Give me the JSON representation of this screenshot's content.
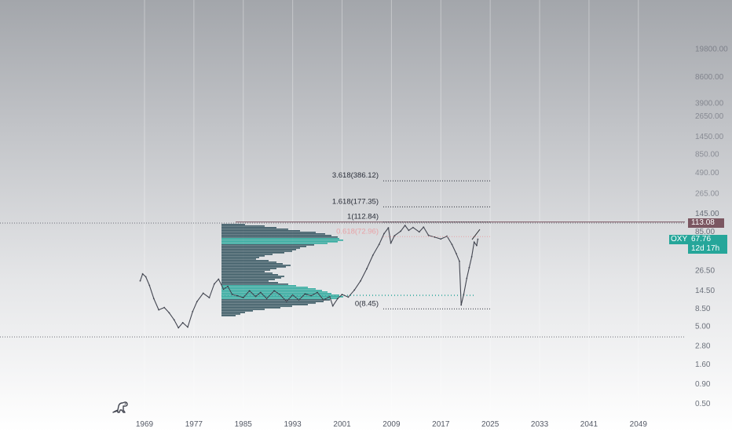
{
  "chart_data": {
    "type": "line",
    "symbol": "OXY",
    "x_ticks": [
      "1969",
      "1977",
      "1985",
      "1993",
      "2001",
      "2009",
      "2017",
      "2025",
      "2033",
      "2041",
      "2049"
    ],
    "y_scale": "log",
    "y_ticks": [
      "19800.00",
      "8600.00",
      "3900.00",
      "2650.00",
      "1450.00",
      "850.00",
      "490.00",
      "265.00",
      "145.00",
      "85.00",
      "26.50",
      "14.50",
      "8.50",
      "5.00",
      "2.80",
      "1.60",
      "0.90",
      "0.50"
    ],
    "series": [
      {
        "x": [
          1968.3,
          1968.7,
          1969.2,
          1969.8,
          1970.5,
          1971.3,
          1972.2,
          1973.0,
          1973.8,
          1974.5,
          1975.2,
          1976.0,
          1976.8,
          1977.5,
          1978.5,
          1979.5,
          1980.3,
          1981.0,
          1981.8,
          1982.5,
          1983.2,
          1984.0,
          1985.0,
          1986.0,
          1987.0,
          1987.8,
          1988.8,
          1990.0,
          1991.0,
          1992.0,
          1993.0,
          1994.0,
          1995.0,
          1996.0,
          1997.0,
          1998.0,
          1999.0,
          1999.5,
          2000.3,
          2001.0,
          2002.0,
          2003.0,
          2004.0,
          2005.0,
          2006.0,
          2007.0,
          2007.8,
          2008.5,
          2008.9,
          2009.5,
          2010.5,
          2011.2,
          2011.8,
          2012.5,
          2013.5,
          2014.2,
          2015.0,
          2016.0,
          2017.0,
          2018.0,
          2018.8,
          2019.5,
          2020.0,
          2020.3,
          2020.7,
          2021.2,
          2021.6,
          2022.0,
          2022.4,
          2022.8,
          2023.0
        ],
        "y": [
          19.5,
          24,
          22,
          17,
          11.5,
          8.2,
          8.8,
          7.5,
          6.1,
          4.8,
          5.6,
          4.9,
          7.8,
          10.5,
          13.5,
          11.8,
          17.8,
          20.5,
          15.2,
          16.5,
          13.0,
          12.5,
          11.8,
          14.5,
          12.2,
          13.8,
          11.5,
          14.5,
          12.8,
          10.5,
          12.8,
          11.0,
          13.2,
          12.5,
          13.8,
          11.0,
          12.2,
          9.2,
          11.5,
          13.0,
          12.0,
          14.8,
          19.5,
          28.0,
          42.0,
          58.0,
          80.0,
          95.0,
          60.0,
          75.0,
          86.0,
          102.0,
          88.0,
          96.0,
          84.0,
          97.0,
          76.0,
          72.0,
          68.0,
          74.0,
          58.0,
          44.0,
          35.0,
          9.5,
          13.0,
          21.0,
          29.0,
          40.0,
          62.0,
          56.0,
          67.76
        ]
      }
    ],
    "last_price": "67.76",
    "countdown": "12d 17h",
    "horizontal_line_label": "113.08",
    "fib_levels": [
      {
        "label": "3.618(386.12)",
        "value": 386.12
      },
      {
        "label": "1.618(177.35)",
        "value": 177.35
      },
      {
        "label": "1(112.84)",
        "value": 112.84
      },
      {
        "label": "0.618(72.96)",
        "value": 72.96
      },
      {
        "label": "0(8.45)",
        "value": 8.45
      }
    ],
    "colors": {
      "price": "#434651",
      "accent": "#26a69a",
      "horizontal_line": "#7b5661",
      "fib_618": "#e8a2a6",
      "volume_profile_dark": "#2e4f5b",
      "volume_profile_teal": "#26a69a"
    }
  }
}
